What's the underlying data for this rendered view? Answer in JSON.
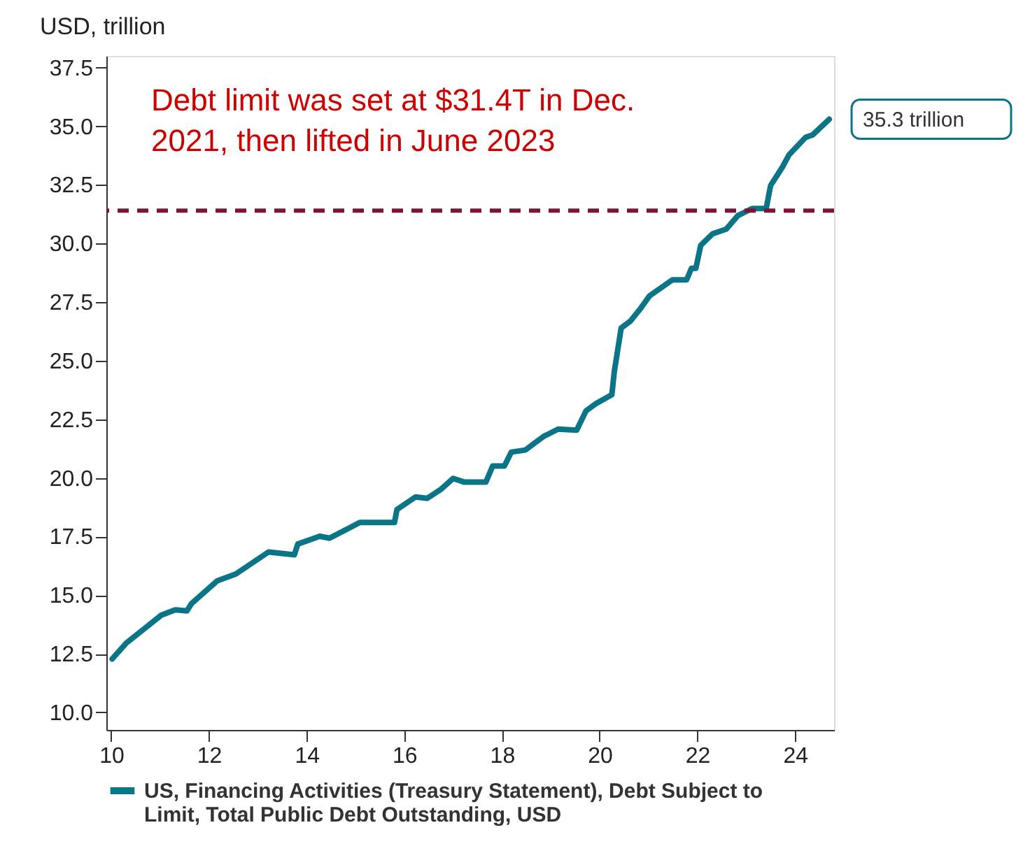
{
  "chart_data": {
    "type": "line",
    "ylabel": "USD, trillion",
    "x": [
      10.02,
      10.31,
      11.02,
      11.31,
      11.55,
      11.64,
      12.17,
      12.55,
      13.22,
      13.75,
      13.82,
      14.27,
      14.47,
      15.09,
      15.8,
      15.85,
      16.23,
      16.47,
      16.76,
      17.0,
      17.23,
      17.67,
      17.81,
      18.05,
      18.19,
      18.48,
      18.86,
      18.96,
      19.15,
      19.53,
      19.72,
      19.92,
      20.25,
      20.3,
      20.44,
      20.63,
      20.82,
      21.02,
      21.49,
      21.78,
      21.88,
      21.97,
      22.07,
      22.31,
      22.59,
      22.83,
      23.12,
      23.41,
      23.5,
      23.74,
      23.88,
      24.22,
      24.36,
      24.7
    ],
    "series": [
      {
        "name": "US, Financing Activities (Treasury Statement), Debt Subject to Limit, Total Public Debt Outstanding, USD",
        "color": "#0b7588",
        "values": [
          12.28,
          12.96,
          14.14,
          14.37,
          14.33,
          14.63,
          15.61,
          15.9,
          16.84,
          16.72,
          17.18,
          17.51,
          17.43,
          18.1,
          18.1,
          18.65,
          19.19,
          19.13,
          19.53,
          19.98,
          19.82,
          19.82,
          20.51,
          20.51,
          21.1,
          21.19,
          21.78,
          21.88,
          22.08,
          22.04,
          22.86,
          23.16,
          23.55,
          24.53,
          26.39,
          26.69,
          27.18,
          27.76,
          28.45,
          28.45,
          28.94,
          28.94,
          29.92,
          30.41,
          30.61,
          31.19,
          31.49,
          31.49,
          32.47,
          33.25,
          33.79,
          34.53,
          34.63,
          35.3
        ]
      }
    ],
    "xlim": [
      9.9,
      24.8
    ],
    "xticks": [
      10,
      12,
      14,
      16,
      18,
      20,
      22,
      24
    ],
    "ylim": [
      9.25,
      38
    ],
    "yticks": [
      {
        "value": 10,
        "label": "10.0"
      },
      {
        "value": 12.5,
        "label": "12.5"
      },
      {
        "value": 15,
        "label": "15.0"
      },
      {
        "value": 17.5,
        "label": "17.5"
      },
      {
        "value": 20,
        "label": "20.0"
      },
      {
        "value": 22.5,
        "label": "22.5"
      },
      {
        "value": 25,
        "label": "25.0"
      },
      {
        "value": 27.5,
        "label": "27.5"
      },
      {
        "value": 30,
        "label": "30.0"
      },
      {
        "value": 32.5,
        "label": "32.5"
      },
      {
        "value": 35,
        "label": "35.0"
      },
      {
        "value": 37.5,
        "label": "37.5"
      }
    ],
    "ref_lines": [
      {
        "axis": "y",
        "value": 31.4,
        "color": "#7a1438",
        "line_style": "dashed"
      }
    ],
    "annotations": [
      "Debt limit was set at $31.4T in Dec. 2021, then lifted in June 2023",
      {
        "text": "35.3 trillion",
        "x": 24.7,
        "y": 35.3
      }
    ],
    "grid": false,
    "legend": "bottom",
    "marker": "none",
    "line_style": "solid"
  }
}
